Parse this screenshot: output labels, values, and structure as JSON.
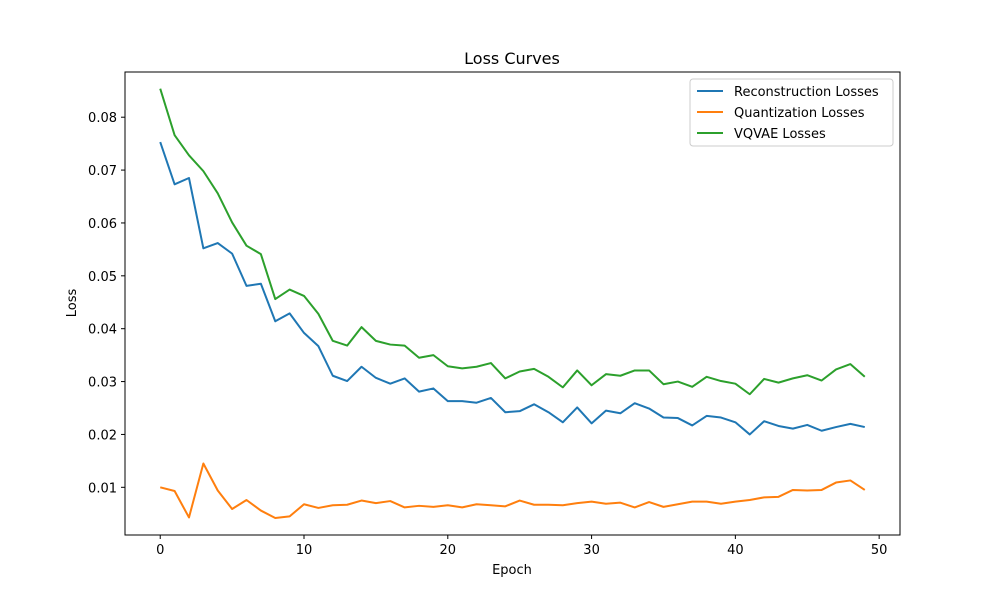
{
  "chart_data": {
    "type": "line",
    "title": "Loss Curves",
    "xlabel": "Epoch",
    "ylabel": "Loss",
    "xlim": [
      -2.45,
      51.45
    ],
    "ylim": [
      0.00098,
      0.08855
    ],
    "xticks": [
      0,
      10,
      20,
      30,
      40,
      50
    ],
    "yticks": [
      0.01,
      0.02,
      0.03,
      0.04,
      0.05,
      0.06,
      0.07,
      0.08
    ],
    "xtick_labels": [
      "0",
      "10",
      "20",
      "30",
      "40",
      "50"
    ],
    "ytick_labels": [
      "0.01",
      "0.02",
      "0.03",
      "0.04",
      "0.05",
      "0.06",
      "0.07",
      "0.08"
    ],
    "grid": false,
    "legend_position": "upper-right",
    "x": [
      0,
      1,
      2,
      3,
      4,
      5,
      6,
      7,
      8,
      9,
      10,
      11,
      12,
      13,
      14,
      15,
      16,
      17,
      18,
      19,
      20,
      21,
      22,
      23,
      24,
      25,
      26,
      27,
      28,
      29,
      30,
      31,
      32,
      33,
      34,
      35,
      36,
      37,
      38,
      39,
      40,
      41,
      42,
      43,
      44,
      45,
      46,
      47,
      48,
      49
    ],
    "series": [
      {
        "name": "Reconstruction Losses",
        "color": "#1f77b4",
        "values": [
          0.0753,
          0.0673,
          0.0685,
          0.0552,
          0.0562,
          0.0542,
          0.0481,
          0.0485,
          0.0414,
          0.0429,
          0.0392,
          0.0367,
          0.0311,
          0.0301,
          0.0328,
          0.0307,
          0.0296,
          0.0306,
          0.0281,
          0.0287,
          0.0263,
          0.0263,
          0.026,
          0.0269,
          0.0242,
          0.0244,
          0.0257,
          0.0242,
          0.0223,
          0.0251,
          0.0221,
          0.0245,
          0.024,
          0.0259,
          0.0249,
          0.0232,
          0.0231,
          0.0217,
          0.0235,
          0.0232,
          0.0223,
          0.02,
          0.0225,
          0.0216,
          0.0211,
          0.0218,
          0.0207,
          0.0214,
          0.022,
          0.0214
        ]
      },
      {
        "name": "Quantization Losses",
        "color": "#ff7f0e",
        "values": [
          0.01,
          0.0093,
          0.0043,
          0.0145,
          0.0094,
          0.0059,
          0.0076,
          0.0056,
          0.0042,
          0.0045,
          0.0068,
          0.0061,
          0.0066,
          0.0067,
          0.0075,
          0.007,
          0.0074,
          0.0062,
          0.0065,
          0.0063,
          0.0066,
          0.0062,
          0.0068,
          0.0066,
          0.0064,
          0.0075,
          0.0067,
          0.0067,
          0.0066,
          0.007,
          0.0073,
          0.0069,
          0.0071,
          0.0062,
          0.0072,
          0.0063,
          0.0068,
          0.0073,
          0.0073,
          0.0069,
          0.0073,
          0.0076,
          0.0081,
          0.0082,
          0.0095,
          0.0094,
          0.0095,
          0.0109,
          0.0113,
          0.0095
        ]
      },
      {
        "name": "VQVAE Losses",
        "color": "#2ca02c",
        "values": [
          0.0854,
          0.0766,
          0.0728,
          0.0698,
          0.0656,
          0.0601,
          0.0557,
          0.0541,
          0.0456,
          0.0474,
          0.0462,
          0.0428,
          0.0377,
          0.0368,
          0.0403,
          0.0377,
          0.037,
          0.0368,
          0.0345,
          0.035,
          0.0329,
          0.0325,
          0.0328,
          0.0335,
          0.0306,
          0.0319,
          0.0324,
          0.0309,
          0.0289,
          0.0321,
          0.0293,
          0.0314,
          0.0311,
          0.0321,
          0.0321,
          0.0295,
          0.03,
          0.029,
          0.0309,
          0.0301,
          0.0296,
          0.0276,
          0.0305,
          0.0298,
          0.0306,
          0.0312,
          0.0302,
          0.0323,
          0.0333,
          0.0309
        ]
      }
    ]
  }
}
